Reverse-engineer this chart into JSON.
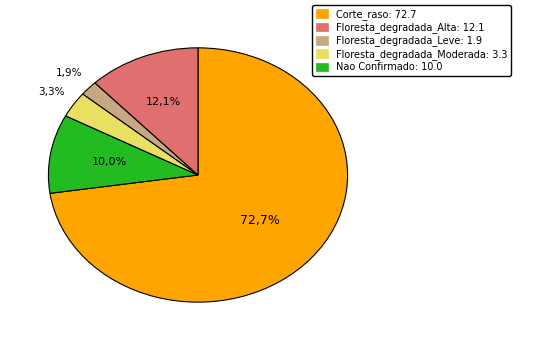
{
  "labels": [
    "Corte_raso",
    "Floresta_degradada_Alta",
    "Floresta_degradada_Leve",
    "Floresta_degradada_Moderada",
    "Nao Confirmado"
  ],
  "values": [
    72.7,
    12.1,
    1.9,
    3.3,
    10.0
  ],
  "colors": [
    "#FFA500",
    "#E07070",
    "#C8A882",
    "#E8E060",
    "#22BB22"
  ],
  "pct_labels": [
    "72,7%",
    "12,1%",
    "1,9%",
    "3,3%",
    "10,0%"
  ],
  "legend_labels": [
    "Corte_raso: 72.7",
    "Floresta_degradada_Alta: 12.1",
    "Floresta_degradada_Leve: 1.9",
    "Floresta_degradada_Moderada: 3.3",
    "Nao Confirmado: 10.0"
  ],
  "legend_colors": [
    "#FFA500",
    "#E07070",
    "#C8A882",
    "#E8E060",
    "#22BB22"
  ],
  "background_color": "#FFFFFF",
  "startangle": 90,
  "figsize": [
    5.5,
    3.5
  ],
  "dpi": 100
}
